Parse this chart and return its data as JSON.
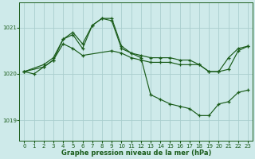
{
  "title": "Graphe pression niveau de la mer (hPa)",
  "bg_color": "#ceeaea",
  "grid_color": "#aacece",
  "line_color": "#1a5c1a",
  "xlim": [
    -0.5,
    23.5
  ],
  "ylim": [
    1018.55,
    1021.55
  ],
  "yticks": [
    1019,
    1020,
    1021
  ],
  "xtick_labels": [
    "0",
    "1",
    "2",
    "3",
    "4",
    "5",
    "6",
    "7",
    "8",
    "9",
    "10",
    "11",
    "12",
    "13",
    "14",
    "15",
    "16",
    "17",
    "18",
    "19",
    "20",
    "21",
    "22",
    "23"
  ],
  "xticks": [
    0,
    1,
    2,
    3,
    4,
    5,
    6,
    7,
    8,
    9,
    10,
    11,
    12,
    13,
    14,
    15,
    16,
    17,
    18,
    19,
    20,
    21,
    22,
    23
  ],
  "lines": [
    {
      "x": [
        0,
        2,
        3,
        4,
        5,
        6,
        7,
        8,
        9,
        10,
        11,
        12,
        13,
        14,
        15,
        16,
        17,
        18,
        19,
        20,
        21,
        22,
        23
      ],
      "y": [
        1020.05,
        1020.2,
        1020.35,
        1020.75,
        1020.9,
        1020.65,
        1021.05,
        1021.2,
        1021.2,
        1020.6,
        1020.45,
        1020.35,
        1019.55,
        1019.45,
        1019.35,
        1019.3,
        1019.25,
        1019.1,
        1019.1,
        1019.35,
        1019.4,
        1019.6,
        1019.65
      ]
    },
    {
      "x": [
        0,
        1,
        2,
        3,
        4,
        5,
        6,
        7,
        8,
        9,
        10,
        11,
        12,
        13,
        14,
        15,
        16,
        17,
        18,
        19,
        20,
        21,
        22,
        23
      ],
      "y": [
        1020.05,
        1020.0,
        1020.15,
        1020.3,
        1020.75,
        1020.85,
        1020.55,
        1021.05,
        1021.2,
        1021.15,
        1020.55,
        1020.45,
        1020.4,
        1020.35,
        1020.35,
        1020.35,
        1020.3,
        1020.3,
        1020.2,
        1020.05,
        1020.05,
        1020.1,
        1020.5,
        1020.6
      ]
    },
    {
      "x": [
        0,
        2,
        3,
        4,
        5,
        6,
        9,
        10,
        11,
        12,
        13,
        14,
        15,
        16,
        17,
        18,
        19,
        20,
        21,
        22,
        23
      ],
      "y": [
        1020.05,
        1020.15,
        1020.3,
        1020.65,
        1020.55,
        1020.4,
        1020.5,
        1020.45,
        1020.35,
        1020.3,
        1020.25,
        1020.25,
        1020.25,
        1020.2,
        1020.2,
        1020.2,
        1020.05,
        1020.05,
        1020.35,
        1020.55,
        1020.6
      ]
    }
  ],
  "figsize": [
    3.2,
    2.0
  ],
  "dpi": 100,
  "label_fontsize": 6,
  "tick_fontsize": 5
}
